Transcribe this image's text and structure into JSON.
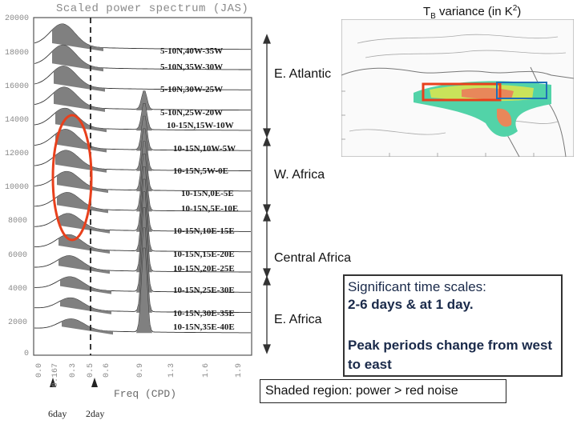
{
  "figure": {
    "title": "Scaled power spectrum (JAS)",
    "xlabel": "Freq (CPD)",
    "y_ticks": [
      "20000",
      "18000",
      "16000",
      "14000",
      "12000",
      "10000",
      "8000",
      "6000",
      "4000",
      "2000",
      "0"
    ],
    "x_ticks": [
      "0.0",
      "0.167",
      "0.3",
      "0.5",
      "0.6",
      "0.9",
      "1.3",
      "1.6",
      "1.9"
    ],
    "markers": {
      "six_day": "6day",
      "two_day": "2day"
    },
    "series_labels": [
      "5-10N,40W-35W",
      "5-10N,35W-30W",
      "5-10N,30W-25W",
      "5-10N,25W-20W",
      "10-15N,15W-10W",
      "10-15N,10W-5W",
      "10-15N,5W-0E",
      "10-15N,0E-5E",
      "10-15N,5E-10E",
      "10-15N,10E-15E",
      "10-15N,15E-20E",
      "10-15N,20E-25E",
      "10-15N,25E-30E",
      "10-15N,30E-35E",
      "10-15N,35E-40E"
    ],
    "colors": {
      "shade": "#808080",
      "highlight_ellipse": "#e8401c",
      "region_box": "#e8401c"
    }
  },
  "map": {
    "title": {
      "prefix": "T",
      "sub": "B",
      "suffix": " variance (in K",
      "sup": "2",
      "close": ")"
    }
  },
  "regions": [
    "E. Atlantic",
    "W. Africa",
    "Central Africa",
    "E. Africa"
  ],
  "annotations": {
    "significant_title": "Significant time scales:",
    "significant_detail": "2-6 days & at 1 day.",
    "peak_change": "Peak periods change from west to east",
    "shaded_note": "Shaded region: power > red noise"
  }
}
